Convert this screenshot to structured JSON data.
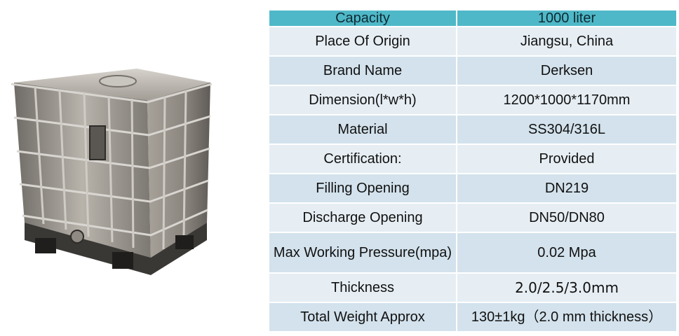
{
  "specs": {
    "header": {
      "label": "Capacity",
      "value": "1000 liter"
    },
    "rows": [
      {
        "label": "Place Of Origin",
        "value": "Jiangsu, China"
      },
      {
        "label": "Brand Name",
        "value": "Derksen"
      },
      {
        "label": "Dimension(l*w*h)",
        "value": "1200*1000*1170mm"
      },
      {
        "label": "Material",
        "value": "SS304/316L"
      },
      {
        "label": "Certification:",
        "value": "Provided"
      },
      {
        "label": "Filling Opening",
        "value": "DN219"
      },
      {
        "label": "Discharge Opening",
        "value": "DN50/DN80"
      },
      {
        "label": "Max Working Pressure(mpa)",
        "value": "0.02 Mpa"
      },
      {
        "label": "Thickness",
        "value": "2.0/2.5/3.0mm"
      },
      {
        "label": "Total Weight Approx",
        "value": "130±1kg（2.0 mm thickness）"
      }
    ]
  },
  "colors": {
    "header_bg": "#4fb8c8",
    "row_light": "#e6eef4",
    "row_dark": "#d3e2ec"
  }
}
